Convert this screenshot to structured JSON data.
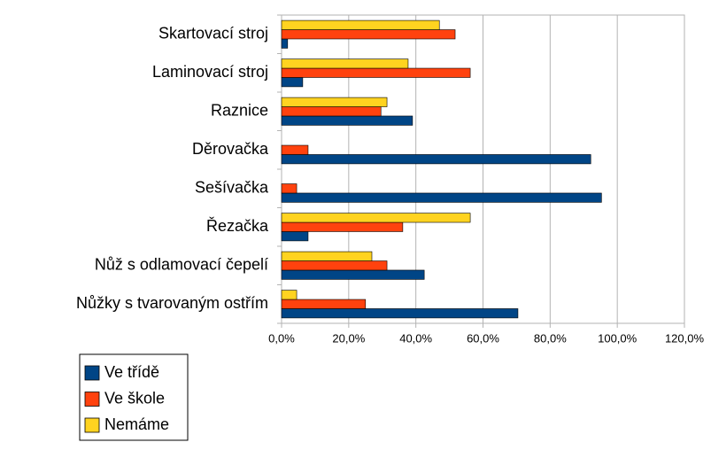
{
  "chart_data": {
    "type": "hbar",
    "categories": [
      "Skartovací stroj",
      "Laminovací stroj",
      "Raznice",
      "Děrovačka",
      "Sešívačka",
      "Řezačka",
      "Nůž s odlamovací čepelí",
      "Nůžky s tvarovaným ostřím"
    ],
    "series": [
      {
        "name": "Ve třídě",
        "color": "#004586",
        "values": [
          1.8,
          6.3,
          39,
          92.1,
          95.3,
          7.9,
          42.5,
          70.4
        ]
      },
      {
        "name": "Ve škole",
        "color": "#ff420e",
        "values": [
          51.7,
          56.2,
          29.6,
          7.9,
          4.5,
          36.1,
          31.4,
          25
        ]
      },
      {
        "name": "Nemáme",
        "color": "#ffd320",
        "values": [
          47,
          37.7,
          31.4,
          0,
          0,
          56.2,
          26.9,
          4.5
        ]
      }
    ],
    "xlim": [
      0,
      120
    ],
    "xticks": [
      {
        "value": 0,
        "label": "0,0%"
      },
      {
        "value": 20,
        "label": "20,0%"
      },
      {
        "value": 40,
        "label": "40,0%"
      },
      {
        "value": 60,
        "label": "60,0%"
      },
      {
        "value": 80,
        "label": "80,0%"
      },
      {
        "value": 100,
        "label": "100,0%"
      },
      {
        "value": 120,
        "label": "120,0%"
      }
    ],
    "grid": true,
    "legend": "bottom-left"
  }
}
